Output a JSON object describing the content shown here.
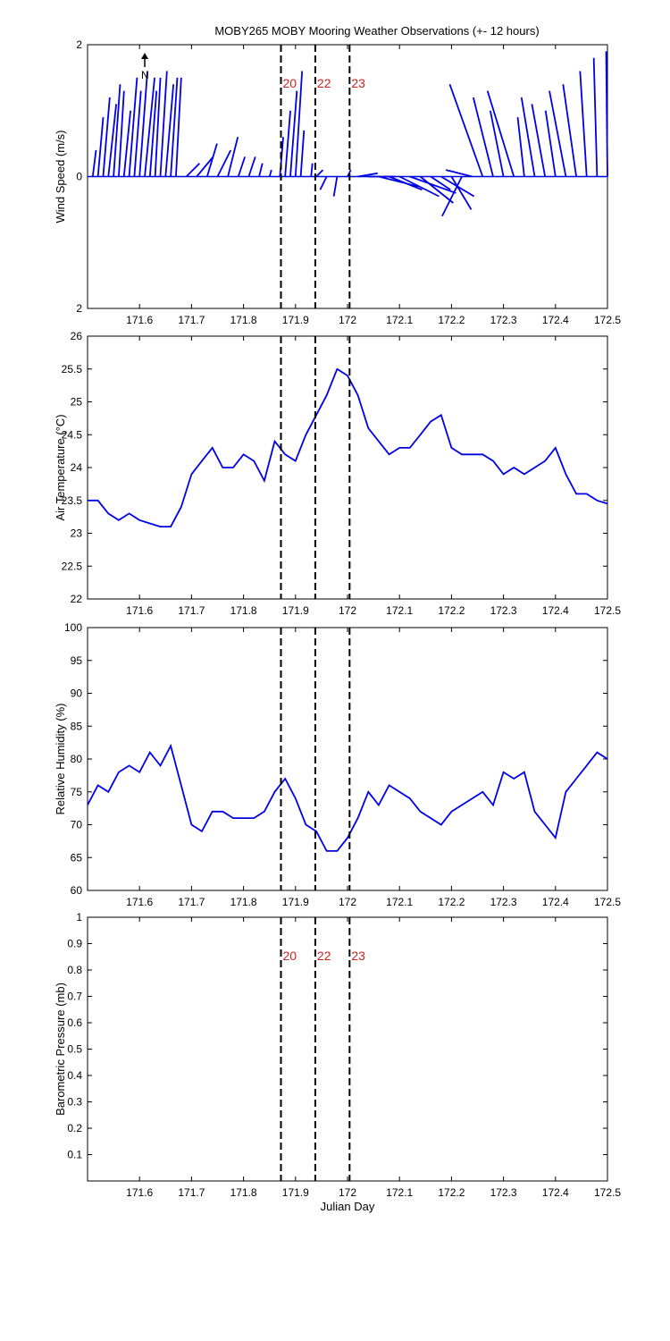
{
  "title": "MOBY265 MOBY Mooring Weather Observations (+- 12 hours)",
  "colors": {
    "series": "#0000e6",
    "markers": "#000000",
    "hour_labels": "#cc2222",
    "axes": "#000000"
  },
  "chart_data": [
    {
      "type": "line",
      "subtype": "wind-vector-sticks",
      "title": "MOBY265 MOBY Mooring Weather Observations (+- 12 hours)",
      "ylabel": "Wind Speed (m/s)",
      "xlabel": "",
      "xlim": [
        171.5,
        172.5
      ],
      "ylim": [
        -2,
        2
      ],
      "xticks": [
        "171.6",
        "171.7",
        "171.8",
        "171.9",
        "172",
        "172.1",
        "172.2",
        "172.3",
        "172.4",
        "172.5"
      ],
      "yticks": [
        "2",
        "0",
        "2"
      ],
      "north_arrow": {
        "label": "N",
        "x": 171.61
      },
      "markers": [
        171.872,
        171.938,
        172.004
      ],
      "marker_labels": [
        "20",
        "22",
        "23"
      ],
      "series": [
        {
          "x": [
            171.51,
            171.52,
            171.53,
            171.54,
            171.55,
            171.56,
            171.57,
            171.58,
            171.59,
            171.6,
            171.61,
            171.62,
            171.63,
            171.64,
            171.65,
            171.66,
            171.67,
            171.69,
            171.71,
            171.73,
            171.75,
            171.77,
            171.79,
            171.81,
            171.83,
            171.85,
            171.87,
            171.88,
            171.89,
            171.9,
            171.91,
            171.93,
            171.94,
            171.96,
            171.98,
            172.0,
            172.02,
            172.04,
            172.06,
            172.08,
            172.1,
            172.12,
            172.14,
            172.16,
            172.18,
            172.2,
            172.22,
            172.24,
            172.26,
            172.28,
            172.3,
            172.32,
            172.34,
            172.36,
            172.38,
            172.4,
            172.42,
            172.44,
            172.46,
            172.48,
            172.5
          ],
          "u": [
            0.05,
            0.08,
            0.1,
            0.12,
            0.1,
            0.08,
            0.1,
            0.12,
            0.1,
            0.12,
            0.15,
            0.1,
            0.08,
            0.1,
            0.12,
            0.1,
            0.08,
            0.2,
            0.25,
            0.15,
            0.2,
            0.15,
            0.1,
            0.1,
            0.05,
            0.03,
            0.05,
            0.08,
            0.1,
            0.1,
            0.05,
            0.02,
            0.1,
            -0.1,
            -0.05,
            0.05,
            0.3,
            0.4,
            0.6,
            0.5,
            0.6,
            0.7,
            0.5,
            0.3,
            0.5,
            0.3,
            -0.3,
            -0.4,
            -0.5,
            -0.3,
            -0.2,
            -0.4,
            -0.1,
            -0.2,
            -0.2,
            -0.15,
            -0.25,
            -0.2,
            -0.1,
            -0.05,
            -0.02
          ],
          "v": [
            0.4,
            0.9,
            1.2,
            1.1,
            1.4,
            1.3,
            1.0,
            1.5,
            1.3,
            1.6,
            1.5,
            1.3,
            1.5,
            1.6,
            1.4,
            1.5,
            1.5,
            0.2,
            0.3,
            0.5,
            0.4,
            0.6,
            0.3,
            0.3,
            0.2,
            0.1,
            0.6,
            1.0,
            1.3,
            1.6,
            0.7,
            0.2,
            0.1,
            -0.2,
            -0.3,
            0.1,
            0.05,
            0.0,
            -0.15,
            -0.2,
            -0.3,
            -0.25,
            -0.4,
            -0.2,
            -0.3,
            -0.5,
            -0.6,
            0.1,
            1.4,
            1.2,
            1.0,
            1.3,
            0.9,
            1.2,
            1.1,
            1.0,
            1.3,
            1.4,
            1.6,
            1.8,
            1.9
          ]
        }
      ]
    },
    {
      "type": "line",
      "ylabel": "Air Temperature (°C)",
      "xlabel": "",
      "xlim": [
        171.5,
        172.5
      ],
      "ylim": [
        22,
        26
      ],
      "xticks": [
        "171.6",
        "171.7",
        "171.8",
        "171.9",
        "172",
        "172.1",
        "172.2",
        "172.3",
        "172.4",
        "172.5"
      ],
      "yticks": [
        "22",
        "22.5",
        "23",
        "23.5",
        "24",
        "24.5",
        "25",
        "25.5",
        "26"
      ],
      "markers": [
        171.872,
        171.938,
        172.004
      ],
      "series": [
        {
          "x": [
            171.5,
            171.52,
            171.54,
            171.56,
            171.58,
            171.6,
            171.62,
            171.64,
            171.66,
            171.68,
            171.7,
            171.72,
            171.74,
            171.76,
            171.78,
            171.8,
            171.82,
            171.84,
            171.86,
            171.88,
            171.9,
            171.92,
            171.94,
            171.96,
            171.98,
            172.0,
            172.02,
            172.04,
            172.06,
            172.08,
            172.1,
            172.12,
            172.14,
            172.16,
            172.18,
            172.2,
            172.22,
            172.24,
            172.26,
            172.28,
            172.3,
            172.32,
            172.34,
            172.36,
            172.38,
            172.4,
            172.42,
            172.44,
            172.46,
            172.48,
            172.5
          ],
          "y": [
            23.5,
            23.5,
            23.3,
            23.2,
            23.3,
            23.2,
            23.15,
            23.1,
            23.1,
            23.4,
            23.9,
            24.1,
            24.3,
            24.0,
            24.0,
            24.2,
            24.1,
            23.8,
            24.4,
            24.2,
            24.1,
            24.5,
            24.8,
            25.1,
            25.5,
            25.4,
            25.1,
            24.6,
            24.4,
            24.2,
            24.3,
            24.3,
            24.5,
            24.7,
            24.8,
            24.3,
            24.2,
            24.2,
            24.2,
            24.1,
            23.9,
            24.0,
            23.9,
            24.0,
            24.1,
            24.3,
            23.9,
            23.6,
            23.6,
            23.5,
            23.45
          ]
        }
      ]
    },
    {
      "type": "line",
      "ylabel": "Relative Humidity (%)",
      "xlabel": "",
      "xlim": [
        171.5,
        172.5
      ],
      "ylim": [
        60,
        100
      ],
      "xticks": [
        "171.6",
        "171.7",
        "171.8",
        "171.9",
        "172",
        "172.1",
        "172.2",
        "172.3",
        "172.4",
        "172.5"
      ],
      "yticks": [
        "60",
        "65",
        "70",
        "75",
        "80",
        "85",
        "90",
        "95",
        "100"
      ],
      "markers": [
        171.872,
        171.938,
        172.004
      ],
      "series": [
        {
          "x": [
            171.5,
            171.52,
            171.54,
            171.56,
            171.58,
            171.6,
            171.62,
            171.64,
            171.66,
            171.68,
            171.7,
            171.72,
            171.74,
            171.76,
            171.78,
            171.8,
            171.82,
            171.84,
            171.86,
            171.88,
            171.9,
            171.92,
            171.94,
            171.96,
            171.98,
            172.0,
            172.02,
            172.04,
            172.06,
            172.08,
            172.1,
            172.12,
            172.14,
            172.16,
            172.18,
            172.2,
            172.22,
            172.24,
            172.26,
            172.28,
            172.3,
            172.32,
            172.34,
            172.36,
            172.38,
            172.4,
            172.42,
            172.44,
            172.46,
            172.48,
            172.5
          ],
          "y": [
            73,
            76,
            75,
            78,
            79,
            78,
            81,
            79,
            82,
            76,
            70,
            69,
            72,
            72,
            71,
            71,
            71,
            72,
            75,
            77,
            74,
            70,
            69,
            66,
            66,
            68,
            71,
            75,
            73,
            76,
            75,
            74,
            72,
            71,
            70,
            72,
            73,
            74,
            75,
            73,
            78,
            77,
            78,
            72,
            70,
            68,
            75,
            77,
            79,
            81,
            80
          ]
        }
      ]
    },
    {
      "type": "line",
      "ylabel": "Barometric Pressure (mb)",
      "xlabel": "Julian Day",
      "xlim": [
        171.5,
        172.5
      ],
      "ylim": [
        0,
        1
      ],
      "xticks": [
        "171.6",
        "171.7",
        "171.8",
        "171.9",
        "172",
        "172.1",
        "172.2",
        "172.3",
        "172.4",
        "172.5"
      ],
      "yticks": [
        "0.1",
        "0.2",
        "0.3",
        "0.4",
        "0.5",
        "0.6",
        "0.7",
        "0.8",
        "0.9",
        "1"
      ],
      "markers": [
        171.872,
        171.938,
        172.004
      ],
      "marker_labels": [
        "20",
        "22",
        "23"
      ],
      "series": []
    }
  ]
}
